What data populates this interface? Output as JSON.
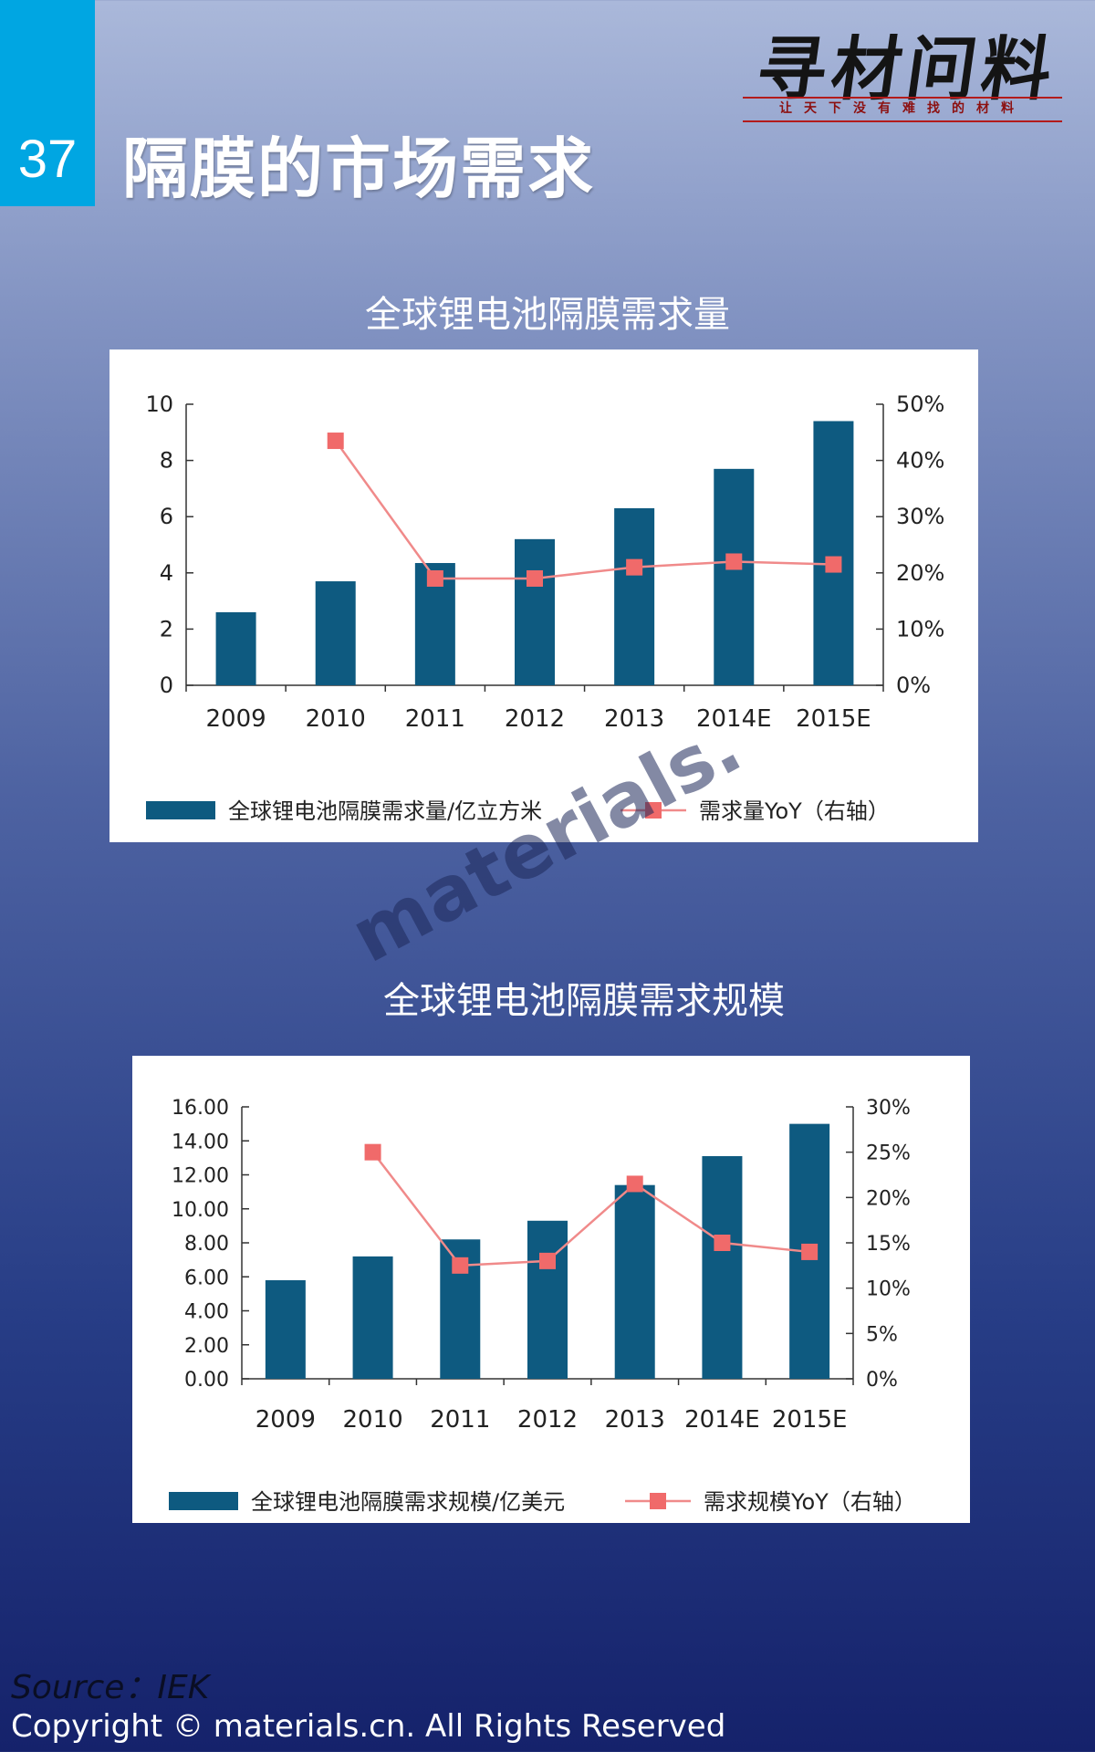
{
  "page": {
    "number": "37",
    "title": "隔膜的市场需求",
    "logo_text": "寻材问料",
    "logo_tagline": "让天下没有难找的材料",
    "watermark": "materials.",
    "source": "Source：IEK",
    "copyright": "Copyright © materials.cn. All Rights Reserved"
  },
  "colors": {
    "bar": "#0e5a80",
    "line": "#f08a8a",
    "marker": "#f06a6a",
    "accent": "#00a6e2"
  },
  "chart_data": [
    {
      "type": "bar",
      "title": "全球锂电池隔膜需求量",
      "categories": [
        "2009",
        "2010",
        "2011",
        "2012",
        "2013",
        "2014E",
        "2015E"
      ],
      "ylim": [
        0,
        10
      ],
      "y_ticks": [
        "0",
        "2",
        "4",
        "6",
        "8",
        "10"
      ],
      "y2lim": [
        0,
        0.5
      ],
      "y2_ticks": [
        "0%",
        "10%",
        "20%",
        "30%",
        "40%",
        "50%"
      ],
      "legend_position": "bottom",
      "series": [
        {
          "name": "全球锂电池隔膜需求量/亿立方米",
          "type": "bar",
          "axis": "left",
          "values": [
            2.6,
            3.7,
            4.35,
            5.2,
            6.3,
            7.7,
            9.4
          ]
        },
        {
          "name": "需求量YoY（右轴）",
          "type": "line",
          "axis": "right",
          "values": [
            null,
            0.435,
            0.19,
            0.19,
            0.21,
            0.22,
            0.215
          ]
        }
      ]
    },
    {
      "type": "bar",
      "title": "全球锂电池隔膜需求规模",
      "categories": [
        "2009",
        "2010",
        "2011",
        "2012",
        "2013",
        "2014E",
        "2015E"
      ],
      "ylim": [
        0,
        16
      ],
      "y_ticks": [
        "0.00",
        "2.00",
        "4.00",
        "6.00",
        "8.00",
        "10.00",
        "12.00",
        "14.00",
        "16.00"
      ],
      "y2lim": [
        0,
        0.3
      ],
      "y2_ticks": [
        "0%",
        "5%",
        "10%",
        "15%",
        "20%",
        "25%",
        "30%"
      ],
      "legend_position": "bottom",
      "series": [
        {
          "name": "全球锂电池隔膜需求规模/亿美元",
          "type": "bar",
          "axis": "left",
          "values": [
            5.8,
            7.2,
            8.2,
            9.3,
            11.4,
            13.1,
            15.0
          ]
        },
        {
          "name": "需求规模YoY（右轴）",
          "type": "line",
          "axis": "right",
          "values": [
            null,
            0.25,
            0.125,
            0.13,
            0.215,
            0.15,
            0.14
          ]
        }
      ]
    }
  ]
}
